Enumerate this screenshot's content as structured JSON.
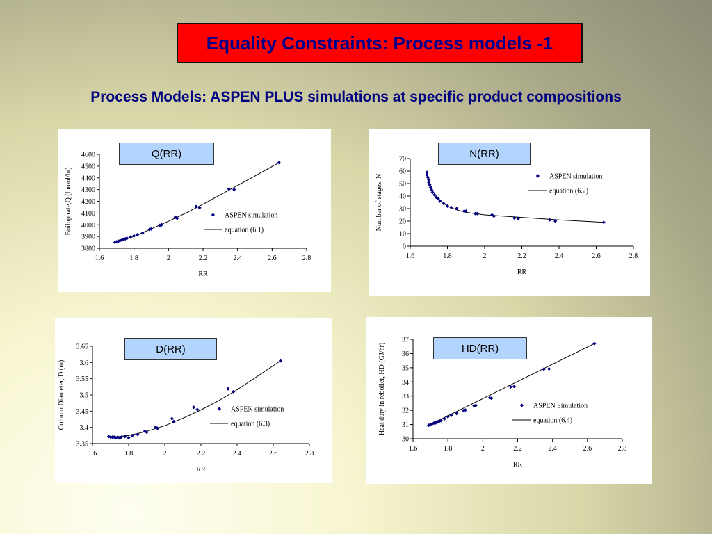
{
  "slide": {
    "title": "Equality Constraints: Process models -1",
    "subtitle": "Process Models: ASPEN PLUS simulations at specific product compositions"
  },
  "colors": {
    "title_bg": "#ff0000",
    "title_text": "#00008b",
    "marker": "#000080",
    "tag_bg": "#b3d4fc"
  },
  "chart_data": [
    {
      "type": "scatter",
      "tag": "Q(RR)",
      "xlabel": "RR",
      "ylabel": "Boilup rate,Q (lbmol/hr)",
      "xlim": [
        1.6,
        2.8
      ],
      "ylim": [
        3800,
        4600
      ],
      "xticks": [
        "1.6",
        "1.8",
        "2",
        "2.2",
        "2.4",
        "2.6",
        "2.8"
      ],
      "yticks": [
        "3800",
        "3900",
        "4000",
        "4100",
        "4200",
        "4300",
        "4400",
        "4500",
        "4600"
      ],
      "legend": [
        "ASPEN simulation",
        "equation (6.1)"
      ],
      "series": [
        {
          "name": "ASPEN simulation",
          "x": [
            1.69,
            1.7,
            1.71,
            1.72,
            1.73,
            1.74,
            1.75,
            1.76,
            1.78,
            1.8,
            1.82,
            1.85,
            1.89,
            1.9,
            1.95,
            1.96,
            2.04,
            2.05,
            2.16,
            2.18,
            2.35,
            2.38,
            2.64
          ],
          "y": [
            3850,
            3855,
            3860,
            3865,
            3870,
            3875,
            3880,
            3885,
            3895,
            3905,
            3915,
            3930,
            3960,
            3965,
            3995,
            4000,
            4065,
            4055,
            4155,
            4145,
            4305,
            4300,
            4530
          ]
        },
        {
          "name": "equation (6.1)",
          "x": [
            1.69,
            1.8,
            1.9,
            2.0,
            2.1,
            2.2,
            2.3,
            2.4,
            2.5,
            2.64
          ],
          "y": [
            3850,
            3900,
            3965,
            4030,
            4100,
            4175,
            4255,
            4335,
            4415,
            4530
          ]
        }
      ]
    },
    {
      "type": "scatter",
      "tag": "N(RR)",
      "xlabel": "RR",
      "ylabel": "Number of stages, N",
      "xlim": [
        1.6,
        2.8
      ],
      "ylim": [
        0,
        70
      ],
      "xticks": [
        "1.6",
        "1.8",
        "2",
        "2.2",
        "2.4",
        "2.6",
        "2.8"
      ],
      "yticks": [
        "0",
        "10",
        "20",
        "30",
        "40",
        "50",
        "60",
        "70"
      ],
      "legend": [
        "ASPEN simulation",
        "equation (6.2)"
      ],
      "series": [
        {
          "name": "ASPEN simulation",
          "x": [
            1.69,
            1.69,
            1.695,
            1.7,
            1.7,
            1.705,
            1.71,
            1.715,
            1.72,
            1.73,
            1.74,
            1.75,
            1.76,
            1.78,
            1.8,
            1.82,
            1.85,
            1.89,
            1.9,
            1.95,
            1.96,
            2.04,
            2.05,
            2.16,
            2.18,
            2.35,
            2.38,
            2.64
          ],
          "y": [
            59,
            57,
            55,
            53,
            51,
            49,
            47,
            45,
            43,
            41,
            39,
            38,
            36,
            34,
            32,
            31,
            30,
            28,
            28,
            26,
            26,
            25,
            24,
            22.5,
            22,
            21,
            20,
            19
          ]
        },
        {
          "name": "equation (6.2)",
          "x": [
            1.69,
            1.7,
            1.72,
            1.75,
            1.8,
            1.85,
            1.9,
            2.0,
            2.2,
            2.4,
            2.64
          ],
          "y": [
            58,
            51,
            44,
            38,
            32,
            29,
            27,
            25,
            23,
            21,
            19
          ]
        }
      ]
    },
    {
      "type": "scatter",
      "tag": "D(RR)",
      "xlabel": "RR",
      "ylabel": "Column Diameter, D (m)",
      "xlim": [
        1.6,
        2.8
      ],
      "ylim": [
        3.35,
        3.65
      ],
      "xticks": [
        "1.6",
        "1.8",
        "2",
        "2.2",
        "2.4",
        "2.6",
        "2.8"
      ],
      "yticks": [
        "3.35",
        "3.4",
        "3.45",
        "3.5",
        "3.55",
        "3.6",
        "3.65"
      ],
      "legend": [
        "ASPEN simulation",
        "equation (6.3)"
      ],
      "series": [
        {
          "name": "ASPEN simulation",
          "x": [
            1.69,
            1.7,
            1.71,
            1.72,
            1.73,
            1.74,
            1.75,
            1.76,
            1.78,
            1.8,
            1.82,
            1.85,
            1.89,
            1.9,
            1.95,
            1.96,
            2.04,
            2.05,
            2.16,
            2.18,
            2.35,
            2.38,
            2.64
          ],
          "y": [
            3.372,
            3.37,
            3.37,
            3.37,
            3.368,
            3.37,
            3.367,
            3.37,
            3.372,
            3.368,
            3.375,
            3.378,
            3.388,
            3.385,
            3.401,
            3.397,
            3.427,
            3.418,
            3.462,
            3.455,
            3.519,
            3.51,
            3.605
          ]
        },
        {
          "name": "equation (6.3)",
          "x": [
            1.69,
            1.75,
            1.8,
            1.85,
            1.9,
            2.0,
            2.1,
            2.2,
            2.3,
            2.4,
            2.5,
            2.64
          ],
          "y": [
            3.37,
            3.372,
            3.375,
            3.381,
            3.388,
            3.405,
            3.428,
            3.454,
            3.483,
            3.516,
            3.553,
            3.605
          ]
        }
      ]
    },
    {
      "type": "scatter",
      "tag": "HD(RR)",
      "xlabel": "RR",
      "ylabel": "Heat duty in reboiler, HD (GJ/hr)",
      "xlim": [
        1.6,
        2.8
      ],
      "ylim": [
        30,
        37
      ],
      "xticks": [
        "1.6",
        "1.8",
        "2",
        "2.2",
        "2.4",
        "2.6",
        "2.8"
      ],
      "yticks": [
        "30",
        "31",
        "32",
        "33",
        "34",
        "35",
        "36",
        "37"
      ],
      "legend": [
        "ASPEN Simulation",
        "equation (6.4)"
      ],
      "series": [
        {
          "name": "ASPEN Simulation",
          "x": [
            1.69,
            1.7,
            1.71,
            1.72,
            1.73,
            1.74,
            1.75,
            1.76,
            1.78,
            1.8,
            1.82,
            1.85,
            1.89,
            1.9,
            1.95,
            1.96,
            2.04,
            2.05,
            2.16,
            2.18,
            2.35,
            2.38,
            2.64
          ],
          "y": [
            30.95,
            31.0,
            31.05,
            31.1,
            31.12,
            31.18,
            31.22,
            31.28,
            31.4,
            31.55,
            31.65,
            31.78,
            31.98,
            32.02,
            32.32,
            32.35,
            32.88,
            32.85,
            33.65,
            33.68,
            34.9,
            34.92,
            36.7
          ]
        },
        {
          "name": "equation (6.4)",
          "x": [
            1.69,
            2.64
          ],
          "y": [
            30.95,
            36.7
          ]
        }
      ]
    }
  ]
}
